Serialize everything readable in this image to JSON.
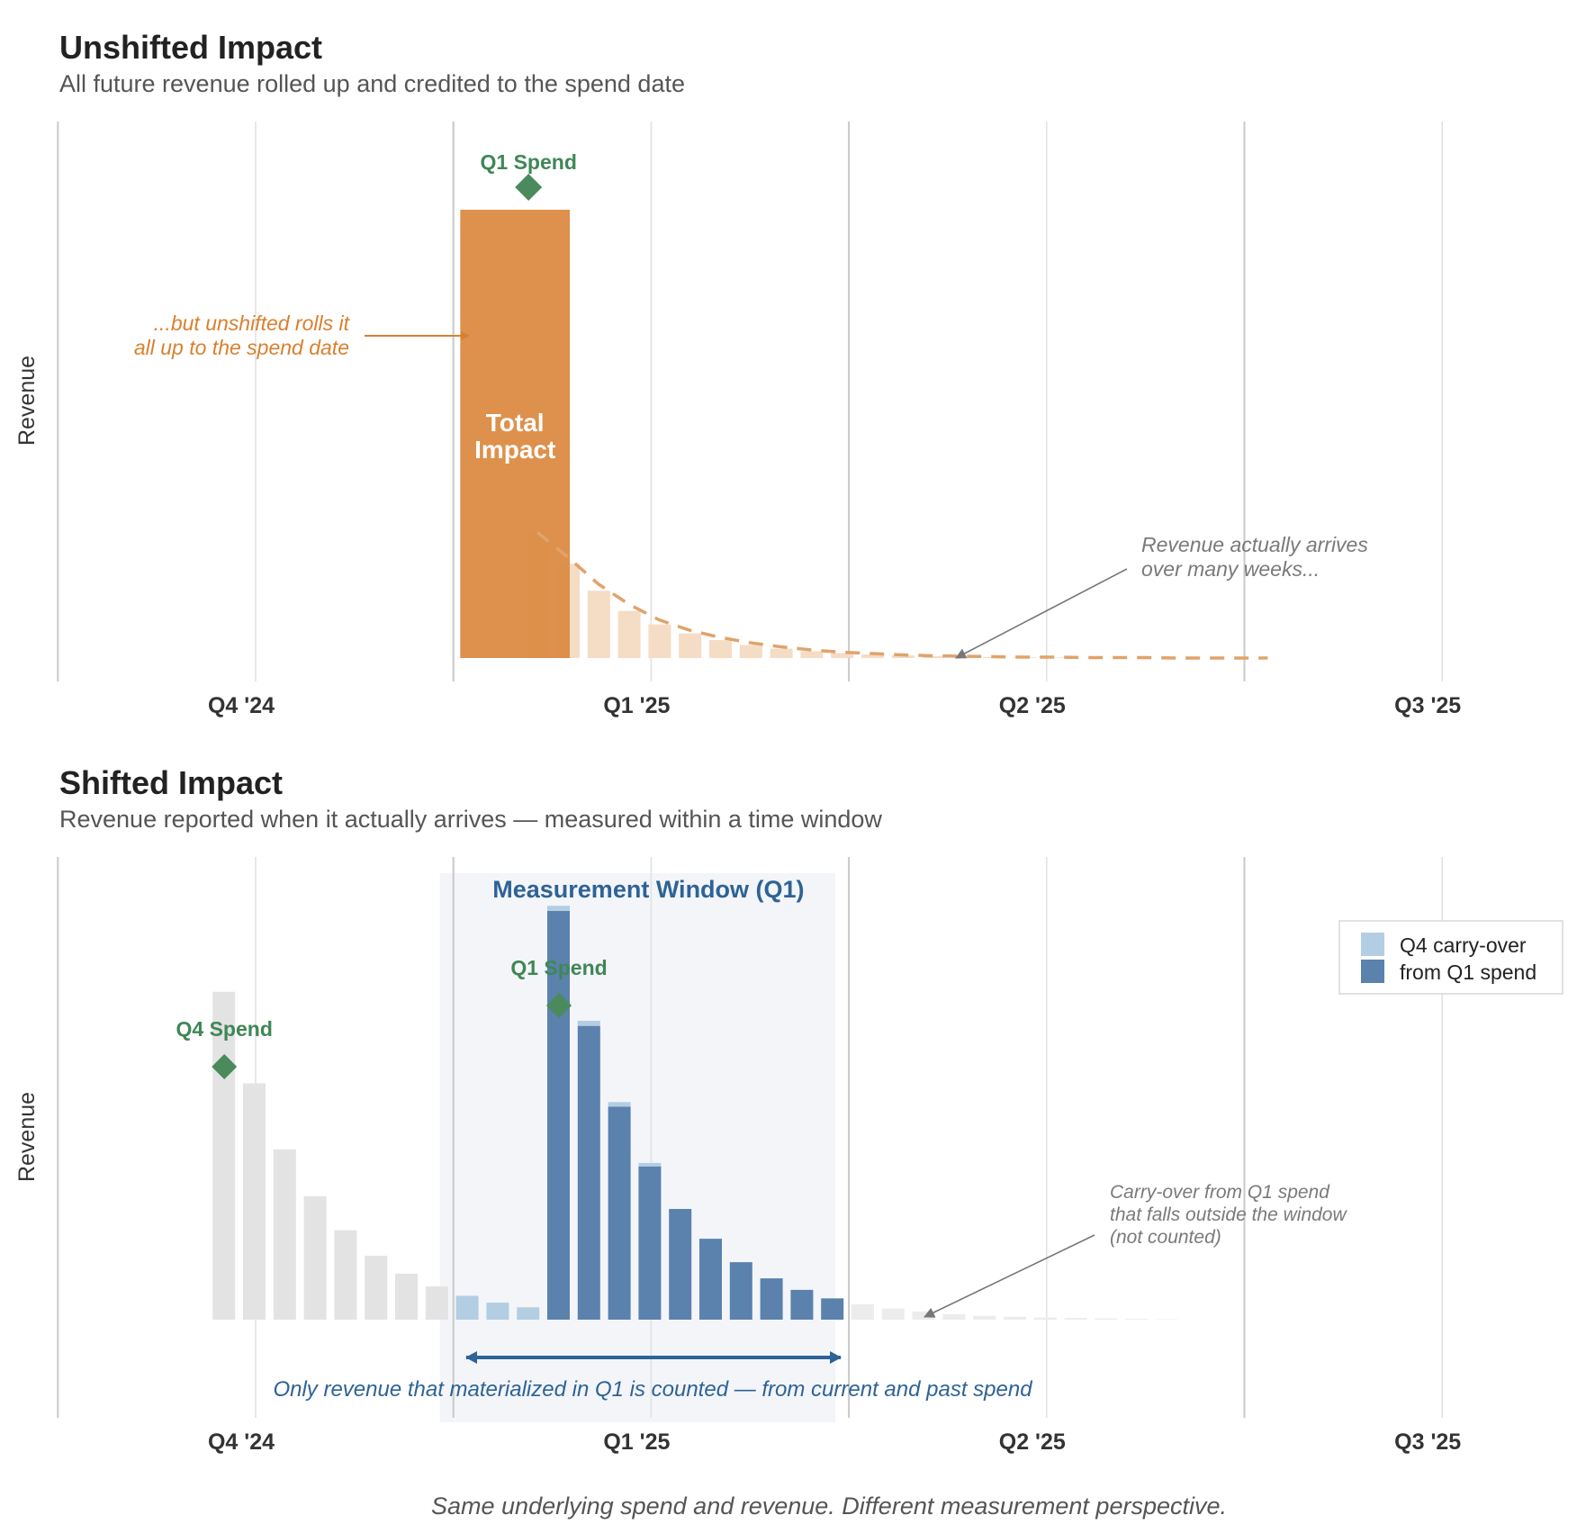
{
  "chart_data": [
    {
      "type": "bar",
      "title": "Unshifted Impact",
      "subtitle": "All future revenue rolled up and credited to the spend date",
      "ylabel": "Revenue",
      "xlabel": "",
      "x_unit": "week",
      "x_ticks": [
        {
          "week": 0,
          "label": "Q4 '24"
        },
        {
          "week": 13,
          "label": "Q1 '25"
        },
        {
          "week": 26,
          "label": "Q2 '25"
        },
        {
          "week": 39,
          "label": "Q3 '25"
        }
      ],
      "x_range": [
        -6,
        46
      ],
      "ylim": [
        0,
        1.05
      ],
      "grid": "vertical",
      "spend_marker": {
        "week": 9,
        "label": "Q1 Spend"
      },
      "total_bar": {
        "start_week": 7.2,
        "end_week": 10.8,
        "value": 1.0,
        "label_lines": [
          "Total",
          "Impact"
        ],
        "color": "#dc8d46"
      },
      "arrival_bars": {
        "weeks": [
          9,
          10,
          11,
          12,
          13,
          14,
          15,
          16,
          17,
          18,
          19,
          20,
          21,
          22,
          23,
          24,
          25,
          26
        ],
        "values": [
          0.28,
          0.21,
          0.15,
          0.105,
          0.075,
          0.055,
          0.04,
          0.029,
          0.021,
          0.015,
          0.011,
          0.008,
          0.006,
          0.004,
          0.003,
          0.002,
          0.0015,
          0.001
        ],
        "color": "#f5dcc4"
      },
      "arrival_curve": {
        "weeks": [
          9,
          10,
          11,
          12,
          13,
          14,
          15,
          16,
          17,
          18,
          19,
          20,
          21,
          22,
          23,
          24,
          25,
          26,
          27,
          28,
          29,
          30,
          31,
          32,
          33
        ],
        "values": [
          0.28,
          0.225,
          0.165,
          0.12,
          0.085,
          0.062,
          0.046,
          0.034,
          0.025,
          0.018,
          0.013,
          0.01,
          0.007,
          0.005,
          0.004,
          0.003,
          0.002,
          0.002,
          0.001,
          0.001,
          0.001,
          0,
          0,
          0,
          0
        ],
        "color": "#e0a36b"
      },
      "annotations": [
        {
          "id": "rollup",
          "lines": [
            "...but unshifted rolls it",
            "all up to the spend date"
          ]
        },
        {
          "id": "arrives",
          "lines": [
            "Revenue actually arrives",
            "over many weeks..."
          ]
        }
      ]
    },
    {
      "type": "bar",
      "title": "Shifted Impact",
      "subtitle": "Revenue reported when it actually arrives — measured within a time window",
      "ylabel": "Revenue",
      "xlabel": "",
      "x_unit": "week",
      "x_ticks": [
        {
          "week": 0,
          "label": "Q4 '24"
        },
        {
          "week": 13,
          "label": "Q1 '25"
        },
        {
          "week": 26,
          "label": "Q2 '25"
        },
        {
          "week": 39,
          "label": "Q3 '25"
        }
      ],
      "x_range": [
        -6,
        46
      ],
      "ylim": [
        0,
        1.05
      ],
      "grid": "vertical",
      "window": {
        "start_week": 6.5,
        "end_week": 19.5,
        "title": "Measurement Window (Q1)",
        "note": "Only revenue that materialized in Q1 is counted — from current and past spend"
      },
      "spend_markers": [
        {
          "week": -1,
          "label": "Q4 Spend"
        },
        {
          "week": 10,
          "label": "Q1 Spend"
        }
      ],
      "q4_outside": {
        "weeks": [
          -1,
          0,
          1,
          2,
          3,
          4,
          5,
          6
        ],
        "values": [
          0.77,
          0.555,
          0.4,
          0.29,
          0.21,
          0.15,
          0.108,
          0.078
        ],
        "color": "#e3e3e3"
      },
      "series": [
        {
          "name": "Q4 carry-over",
          "color": "#b3cde3",
          "weeks": [
            7,
            8,
            9,
            10,
            11,
            12,
            13
          ],
          "values": [
            0.056,
            0.04,
            0.029,
            0.021,
            0.015,
            0.011,
            0.008
          ]
        },
        {
          "name": "from Q1 spend",
          "color": "#5b81ad",
          "weeks": [
            10,
            11,
            12,
            13,
            14,
            15,
            16,
            17,
            18,
            19
          ],
          "values": [
            0.96,
            0.69,
            0.5,
            0.36,
            0.26,
            0.19,
            0.135,
            0.097,
            0.07,
            0.05
          ]
        }
      ],
      "q1_outside": {
        "weeks": [
          20,
          21,
          22,
          23,
          24,
          25,
          26,
          27,
          28,
          29,
          30
        ],
        "values": [
          0.036,
          0.026,
          0.019,
          0.013,
          0.009,
          0.007,
          0.005,
          0.004,
          0.003,
          0.002,
          0.001
        ],
        "color": "#ececec"
      },
      "legend": {
        "position": "top-right"
      },
      "annotations": [
        {
          "id": "carry",
          "lines": [
            "Carry-over from Q1 spend",
            "that falls outside the window",
            "(not counted)"
          ]
        }
      ]
    }
  ],
  "footer": "Same underlying spend and revenue. Different measurement perspective."
}
